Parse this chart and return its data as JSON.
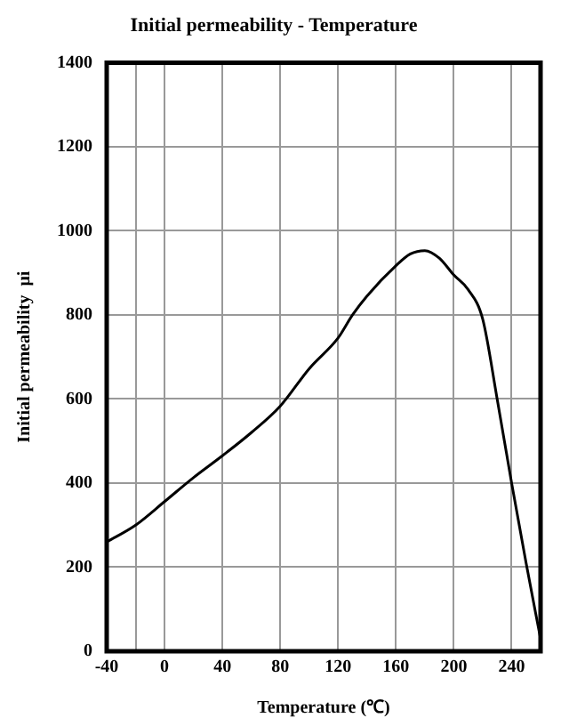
{
  "chart_data": {
    "type": "line",
    "title": "Initial permeability - Temperature",
    "xlabel": "Temperature (℃)",
    "ylabel": "Initial permeability  μi",
    "x": [
      -40,
      -20,
      0,
      20,
      40,
      60,
      80,
      100,
      120,
      130,
      140,
      160,
      170,
      180,
      190,
      200,
      210,
      220,
      230,
      240,
      250,
      260
    ],
    "series": [
      {
        "color": "#000000",
        "values": [
          260,
          300,
          356,
          413,
          465,
          520,
          583,
          672,
          745,
          800,
          845,
          917,
          945,
          953,
          935,
          895,
          860,
          790,
          600,
          400,
          210,
          30
        ]
      }
    ],
    "xlim": [
      -40,
      260
    ],
    "xticks": [
      -40,
      {
        "value": -20,
        "label": null
      },
      0,
      40,
      80,
      120,
      160,
      200,
      240
    ],
    "ylim": [
      0,
      1400
    ],
    "yticks": [
      0,
      200,
      400,
      600,
      800,
      1000,
      1200,
      1400
    ],
    "grid": true,
    "legend": false,
    "marker": "none",
    "line_style": "solid"
  }
}
